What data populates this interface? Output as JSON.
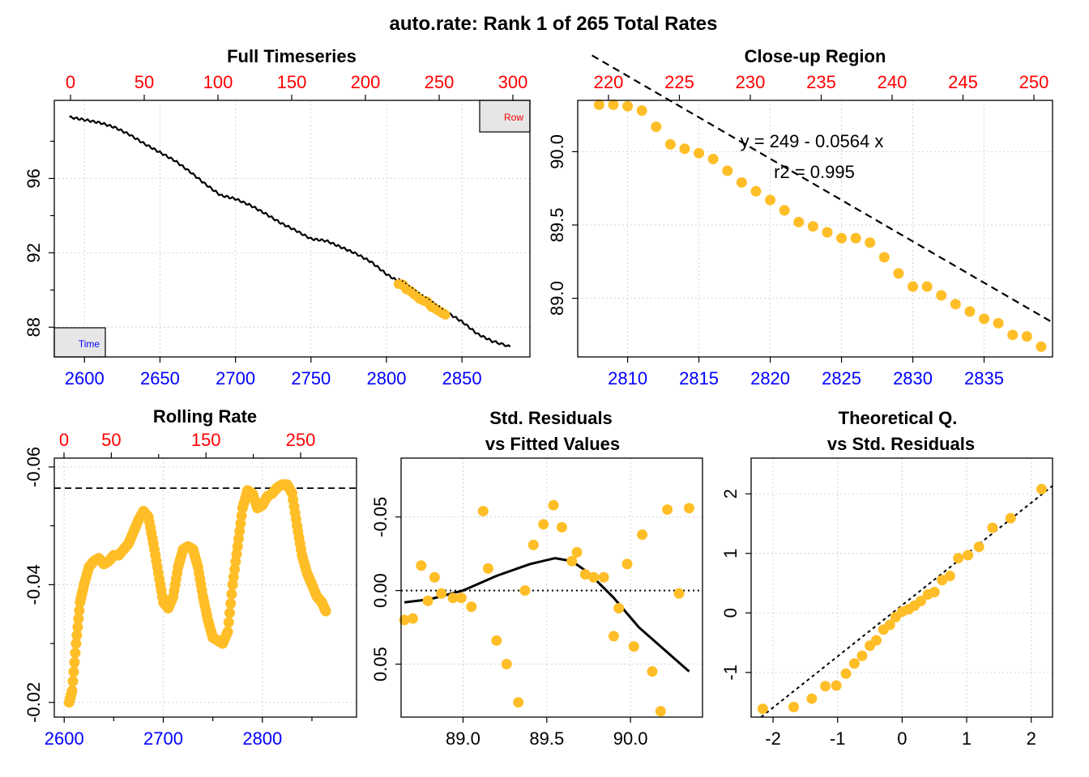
{
  "title": "auto.rate: Rank 1 of 265 Total Rates",
  "colors": {
    "points": "#FFBE27",
    "bottom_axis": "#0000FF",
    "top_axis": "#FF0000",
    "line": "#000000"
  },
  "panels": {
    "full": {
      "title": "Full Timeseries",
      "legend_row": "Row",
      "legend_time": "Time",
      "x_ticks": [
        "2600",
        "2650",
        "2700",
        "2750",
        "2800",
        "2850"
      ],
      "top_ticks": [
        "0",
        "50",
        "100",
        "150",
        "200",
        "250",
        "300"
      ],
      "y_ticks": [
        "88",
        "92",
        "96"
      ]
    },
    "closeup": {
      "title": "Close-up Region",
      "equation": "y = 249 - 0.0564 x",
      "r2": "r2 = 0.995",
      "x_ticks": [
        "2810",
        "2815",
        "2820",
        "2825",
        "2830",
        "2835"
      ],
      "top_ticks": [
        "220",
        "225",
        "230",
        "235",
        "240",
        "245",
        "250"
      ],
      "y_ticks": [
        "89.0",
        "89.5",
        "90.0"
      ]
    },
    "rolling": {
      "title": "Rolling Rate",
      "x_ticks": [
        "2600",
        "2700",
        "2800"
      ],
      "top_ticks": [
        "0",
        "50",
        "150",
        "250"
      ],
      "y_ticks": [
        "-0.02",
        "-0.04",
        "-0.06"
      ]
    },
    "resid": {
      "title_1": "Std. Residuals",
      "title_2": "vs Fitted Values",
      "x_ticks": [
        "89.0",
        "89.5",
        "90.0"
      ],
      "y_ticks": [
        "-0.05",
        "0.00",
        "0.05"
      ]
    },
    "qq": {
      "title_1": "Theoretical Q.",
      "title_2": "vs Std. Residuals",
      "x_ticks": [
        "-2",
        "-1",
        "0",
        "1",
        "2"
      ],
      "y_ticks": [
        "-1",
        "0",
        "1",
        "2"
      ]
    }
  },
  "chart_data": [
    {
      "type": "line",
      "panel": "full",
      "title": "Full Timeseries",
      "xlim": [
        2580,
        2895
      ],
      "ylim": [
        86.4,
        100.2
      ],
      "top_axis_ticks": [
        0,
        50,
        100,
        150,
        200,
        250,
        300
      ],
      "series": [
        {
          "x": [
            2590,
            2600,
            2610,
            2620,
            2630,
            2640,
            2650,
            2660,
            2670,
            2680,
            2690,
            2700,
            2710,
            2720,
            2730,
            2740,
            2750,
            2760,
            2770,
            2780,
            2790,
            2800,
            2810,
            2820,
            2830,
            2840,
            2850,
            2860,
            2870,
            2882
          ],
          "y": [
            99.3,
            99.15,
            99.0,
            98.75,
            98.35,
            97.85,
            97.4,
            96.95,
            96.35,
            95.7,
            95.1,
            94.9,
            94.55,
            94.1,
            93.6,
            93.2,
            92.75,
            92.65,
            92.3,
            91.95,
            91.5,
            90.85,
            90.35,
            89.85,
            89.35,
            88.8,
            88.3,
            87.65,
            87.25,
            86.95
          ]
        },
        {
          "name": "highlight",
          "x_range": [
            2808,
            2839
          ]
        }
      ]
    },
    {
      "type": "scatter",
      "panel": "closeup",
      "title": "Close-up Region",
      "xlim": [
        2806.5,
        2839.8
      ],
      "ylim": [
        88.6,
        90.35
      ],
      "top_axis_ticks": [
        220,
        225,
        230,
        235,
        240,
        245,
        250
      ],
      "x": [
        2808,
        2809,
        2810,
        2811,
        2812,
        2813,
        2814,
        2815,
        2816,
        2817,
        2818,
        2819,
        2820,
        2821,
        2822,
        2823,
        2824,
        2825,
        2826,
        2827,
        2828,
        2829,
        2830,
        2831,
        2832,
        2833,
        2834,
        2835,
        2836,
        2837,
        2838,
        2839
      ],
      "y": [
        90.32,
        90.32,
        90.31,
        90.28,
        90.17,
        90.05,
        90.02,
        89.99,
        89.95,
        89.87,
        89.79,
        89.73,
        89.67,
        89.6,
        89.52,
        89.49,
        89.45,
        89.41,
        89.41,
        89.38,
        89.28,
        89.17,
        89.08,
        89.08,
        89.02,
        88.96,
        88.91,
        88.86,
        88.83,
        88.75,
        88.74,
        88.67
      ],
      "fit": {
        "intercept": 249,
        "slope": -0.0564,
        "r2": 0.995
      }
    },
    {
      "type": "scatter",
      "panel": "rolling",
      "title": "Rolling Rate",
      "xlim": [
        2590,
        2895
      ],
      "ylim": [
        -0.0175,
        -0.0615
      ],
      "top_axis_ticks": [
        0,
        50,
        150,
        250
      ],
      "reference_line": -0.0564,
      "x": [
        2605,
        2608,
        2612,
        2616,
        2620,
        2625,
        2630,
        2635,
        2640,
        2645,
        2650,
        2655,
        2660,
        2665,
        2670,
        2675,
        2680,
        2685,
        2690,
        2695,
        2700,
        2705,
        2710,
        2715,
        2720,
        2725,
        2730,
        2735,
        2740,
        2745,
        2750,
        2755,
        2760,
        2765,
        2770,
        2775,
        2780,
        2785,
        2790,
        2795,
        2800,
        2805,
        2810,
        2815,
        2820,
        2825,
        2830,
        2835,
        2840,
        2845,
        2850,
        2855,
        2860,
        2864
      ],
      "y": [
        -0.02,
        -0.022,
        -0.03,
        -0.037,
        -0.04,
        -0.043,
        -0.044,
        -0.0445,
        -0.0435,
        -0.044,
        -0.045,
        -0.045,
        -0.046,
        -0.047,
        -0.049,
        -0.051,
        -0.0525,
        -0.0515,
        -0.047,
        -0.042,
        -0.037,
        -0.036,
        -0.038,
        -0.043,
        -0.046,
        -0.0465,
        -0.046,
        -0.043,
        -0.038,
        -0.034,
        -0.031,
        -0.0305,
        -0.03,
        -0.032,
        -0.04,
        -0.0465,
        -0.053,
        -0.056,
        -0.0555,
        -0.053,
        -0.0535,
        -0.055,
        -0.0555,
        -0.0565,
        -0.057,
        -0.057,
        -0.0555,
        -0.05,
        -0.045,
        -0.042,
        -0.04,
        -0.038,
        -0.037,
        -0.0355
      ]
    },
    {
      "type": "scatter",
      "panel": "resid",
      "title": "Std. Residuals vs Fitted Values",
      "xlim": [
        88.63,
        90.43
      ],
      "ylim": [
        0.086,
        -0.09
      ],
      "x": [
        88.65,
        88.7,
        88.75,
        88.79,
        88.83,
        88.87,
        88.94,
        88.99,
        89.05,
        89.12,
        89.15,
        89.2,
        89.26,
        89.33,
        89.37,
        89.42,
        89.48,
        89.54,
        89.59,
        89.65,
        89.68,
        89.73,
        89.78,
        89.84,
        89.9,
        89.93,
        89.98,
        90.02,
        90.07,
        90.13,
        90.18,
        90.22,
        90.29,
        90.35
      ],
      "y": [
        0.02,
        0.019,
        -0.017,
        0.007,
        -0.009,
        0.002,
        0.005,
        0.005,
        0.011,
        -0.054,
        -0.015,
        0.034,
        0.05,
        0.076,
        0.0,
        -0.031,
        -0.045,
        -0.058,
        -0.043,
        -0.02,
        -0.026,
        -0.011,
        -0.009,
        -0.009,
        0.031,
        0.012,
        -0.018,
        0.038,
        -0.038,
        0.055,
        0.082,
        -0.055,
        0.002,
        -0.056
      ],
      "smooth": {
        "x": [
          88.65,
          88.8,
          89.0,
          89.2,
          89.4,
          89.55,
          89.65,
          89.75,
          89.9,
          90.05,
          90.2,
          90.35
        ],
        "y": [
          0.008,
          0.006,
          0.0,
          -0.01,
          -0.018,
          -0.022,
          -0.02,
          -0.012,
          0.005,
          0.025,
          0.04,
          0.055
        ]
      },
      "reference_line": 0
    },
    {
      "type": "scatter",
      "panel": "qq",
      "title": "Theoretical Q. vs Std. Residuals",
      "xlim": [
        -2.34,
        2.33
      ],
      "ylim": [
        -1.75,
        2.6
      ],
      "x": [
        -2.16,
        -1.68,
        -1.4,
        -1.19,
        -1.02,
        -0.87,
        -0.74,
        -0.62,
        -0.5,
        -0.4,
        -0.29,
        -0.19,
        -0.1,
        0.0,
        0.1,
        0.19,
        0.29,
        0.4,
        0.5,
        0.62,
        0.74,
        0.87,
        1.02,
        1.19,
        1.4,
        1.68,
        2.16
      ],
      "y": [
        -1.61,
        -1.58,
        -1.44,
        -1.23,
        -1.22,
        -1.02,
        -0.85,
        -0.72,
        -0.55,
        -0.46,
        -0.28,
        -0.2,
        -0.07,
        0.02,
        0.06,
        0.12,
        0.2,
        0.31,
        0.35,
        0.55,
        0.62,
        0.92,
        0.97,
        1.11,
        1.43,
        1.59,
        2.08
      ],
      "reference_line": {
        "intercept": 0.13,
        "slope": 0.86
      }
    }
  ]
}
